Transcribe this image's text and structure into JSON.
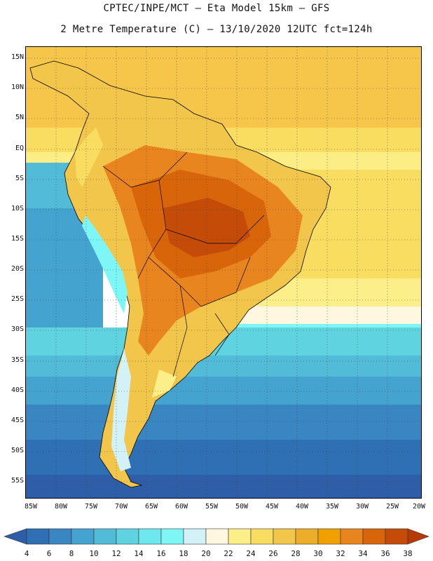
{
  "title_line1": "CPTEC/INPE/MCT –  Eta Model 15km – GFS",
  "title_line2": "2 Metre Temperature (C) – 13/10/2020 12UTC fct=124h",
  "lat_labels": [
    "15N",
    "10N",
    "5N",
    "EQ",
    "5S",
    "10S",
    "15S",
    "20S",
    "25S",
    "30S",
    "35S",
    "40S",
    "45S",
    "50S",
    "55S"
  ],
  "lon_labels": [
    "85W",
    "80W",
    "75W",
    "70W",
    "65W",
    "60W",
    "55W",
    "50W",
    "45W",
    "40W",
    "35W",
    "30W",
    "25W",
    "20W"
  ],
  "colorbar": {
    "values": [
      "4",
      "6",
      "8",
      "10",
      "12",
      "14",
      "16",
      "18",
      "20",
      "22",
      "24",
      "26",
      "28",
      "30",
      "32",
      "34",
      "36",
      "38"
    ],
    "colors": [
      "#2f5ea8",
      "#2f6fb3",
      "#3a86c2",
      "#44a3cf",
      "#52bcd8",
      "#5fd4e0",
      "#6ee8ee",
      "#7ff6f6",
      "#d2f2f8",
      "#fff7e0",
      "#fcef8a",
      "#f8dd60",
      "#f2c64a",
      "#ecad2a",
      "#f0a000",
      "#e8851e",
      "#d8650a",
      "#c44b08",
      "#b73a06"
    ]
  }
}
